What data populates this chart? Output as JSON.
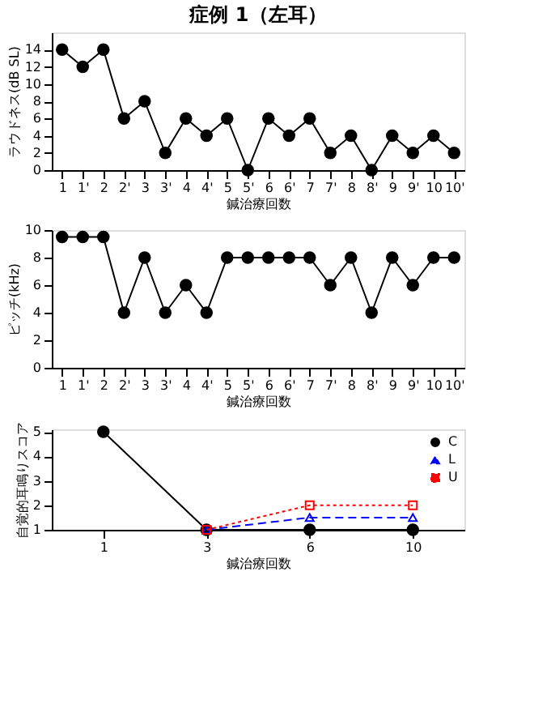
{
  "chart_data": [
    {
      "type": "line",
      "title": "症例 1（左耳）",
      "xlabel": "鍼治療回数",
      "ylabel": "ラウドネス(dB SL)",
      "categories": [
        "1",
        "1'",
        "2",
        "2'",
        "3",
        "3'",
        "4",
        "4'",
        "5",
        "5'",
        "6",
        "6'",
        "7",
        "7'",
        "8",
        "8'",
        "9",
        "9'",
        "10",
        "10'"
      ],
      "ylim": [
        0,
        16
      ],
      "yticks": [
        0,
        2,
        4,
        6,
        8,
        10,
        12,
        14
      ],
      "marker": "circle",
      "line_style": "solid",
      "grid": false,
      "legend": false,
      "series": [
        {
          "color": "#000000",
          "values": [
            14,
            12,
            14,
            6,
            8,
            2,
            6,
            4,
            6,
            0,
            6,
            4,
            6,
            2,
            4,
            0,
            4,
            2,
            4,
            2
          ]
        }
      ]
    },
    {
      "type": "line",
      "xlabel": "鍼治療回数",
      "ylabel": "ピッチ(kHz)",
      "categories": [
        "1",
        "1'",
        "2",
        "2'",
        "3",
        "3'",
        "4",
        "4'",
        "5",
        "5'",
        "6",
        "6'",
        "7",
        "7'",
        "8",
        "8'",
        "9",
        "9'",
        "10",
        "10'"
      ],
      "ylim": [
        0,
        10
      ],
      "yticks": [
        0,
        2,
        4,
        6,
        8,
        10
      ],
      "marker": "circle",
      "line_style": "solid",
      "grid": false,
      "legend": false,
      "series": [
        {
          "color": "#000000",
          "values": [
            9.5,
            9.5,
            9.5,
            4,
            8,
            4,
            6,
            4,
            8,
            8,
            8,
            8,
            8,
            6,
            8,
            4,
            8,
            6,
            8,
            8
          ]
        }
      ]
    },
    {
      "type": "line",
      "xlabel": "鍼治療回数",
      "ylabel": "自覚的耳鳴りスコア",
      "categories": [
        "1",
        "3",
        "6",
        "10"
      ],
      "ylim": [
        1,
        5.1
      ],
      "yticks": [
        1,
        2,
        3,
        4,
        5
      ],
      "grid": false,
      "legend": "top right",
      "series": [
        {
          "name": "C",
          "color": "#000000",
          "marker": "circle",
          "line_style": "solid",
          "values": [
            5,
            1,
            1,
            1
          ]
        },
        {
          "name": "L",
          "color": "#0000ff",
          "marker": "triangle",
          "line_style": "dashed",
          "values": [
            null,
            1,
            1.5,
            1.5
          ]
        },
        {
          "name": "U",
          "color": "#ff0000",
          "marker": "square",
          "line_style": "dotted",
          "values": [
            null,
            1,
            2,
            2
          ]
        }
      ]
    }
  ]
}
